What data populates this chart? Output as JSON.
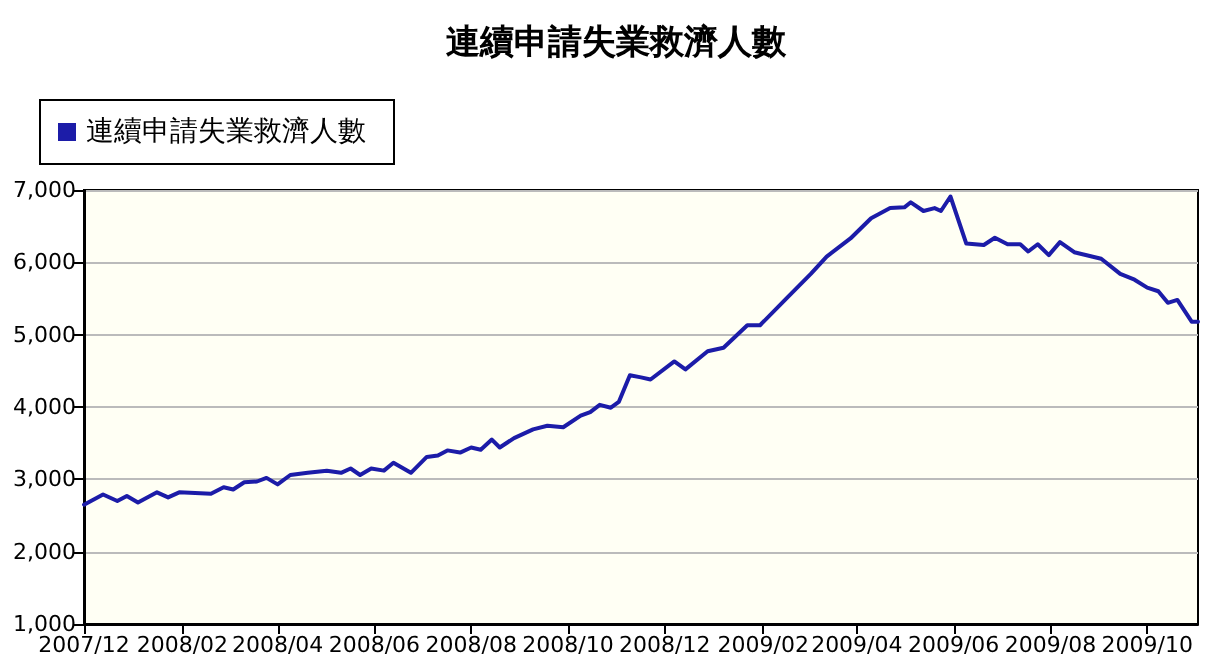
{
  "chart_data": {
    "type": "line",
    "title": "連續申請失業救濟人數",
    "x": [
      "2007-12-01",
      "2007-12-13",
      "2007-12-22",
      "2007-12-28",
      "2008-01-04",
      "2008-01-16",
      "2008-01-23",
      "2008-01-30",
      "2008-02-19",
      "2008-02-27",
      "2008-03-04",
      "2008-03-11",
      "2008-03-19",
      "2008-03-25",
      "2008-04-01",
      "2008-04-09",
      "2008-04-20",
      "2008-05-02",
      "2008-05-11",
      "2008-05-17",
      "2008-05-23",
      "2008-05-30",
      "2008-06-07",
      "2008-06-13",
      "2008-06-24",
      "2008-07-04",
      "2008-07-11",
      "2008-07-17",
      "2008-07-25",
      "2008-08-01",
      "2008-08-07",
      "2008-08-14",
      "2008-08-19",
      "2008-08-28",
      "2008-09-09",
      "2008-09-18",
      "2008-09-28",
      "2008-10-09",
      "2008-10-15",
      "2008-10-21",
      "2008-10-28",
      "2008-11-02",
      "2008-11-09",
      "2008-11-16",
      "2008-11-22",
      "2008-12-07",
      "2008-12-14",
      "2008-12-28",
      "2009-01-07",
      "2009-01-22",
      "2009-01-30",
      "2009-02-16",
      "2009-03-03",
      "2009-03-13",
      "2009-03-28",
      "2009-04-10",
      "2009-04-22",
      "2009-05-01",
      "2009-05-05",
      "2009-05-13",
      "2009-05-20",
      "2009-05-24",
      "2009-05-30",
      "2009-06-09",
      "2009-06-20",
      "2009-06-27",
      "2009-07-05",
      "2009-07-13",
      "2009-07-18",
      "2009-07-24",
      "2009-07-31",
      "2009-08-07",
      "2009-08-16",
      "2009-09-02",
      "2009-09-14",
      "2009-09-23",
      "2009-10-01",
      "2009-10-08",
      "2009-10-14",
      "2009-10-20",
      "2009-10-29",
      "2009-11-02"
    ],
    "series": [
      {
        "name": "連續申請失業救濟人數",
        "color": "#1c1ca8",
        "values": [
          2650,
          2790,
          2700,
          2770,
          2680,
          2820,
          2750,
          2820,
          2800,
          2890,
          2860,
          2960,
          2970,
          3020,
          2930,
          3060,
          3090,
          3120,
          3090,
          3150,
          3060,
          3150,
          3120,
          3230,
          3090,
          3310,
          3330,
          3400,
          3370,
          3440,
          3410,
          3550,
          3440,
          3570,
          3690,
          3740,
          3720,
          3880,
          3930,
          4030,
          3990,
          4070,
          4440,
          4410,
          4380,
          4630,
          4520,
          4770,
          4820,
          5130,
          5130,
          5510,
          5840,
          6080,
          6330,
          6610,
          6750,
          6760,
          6830,
          6710,
          6750,
          6710,
          6910,
          6260,
          6240,
          6340,
          6250,
          6250,
          6150,
          6250,
          6100,
          6280,
          6140,
          6050,
          5840,
          5760,
          5650,
          5600,
          5440,
          5480,
          5180,
          5180
        ]
      }
    ],
    "xlim": [
      "2007-12-01",
      "2009-11-02"
    ],
    "xticks": [
      {
        "value": "2007-12-01",
        "label": "2007/12"
      },
      {
        "value": "2008-02-01",
        "label": "2008/02"
      },
      {
        "value": "2008-04-01",
        "label": "2008/04"
      },
      {
        "value": "2008-06-01",
        "label": "2008/06"
      },
      {
        "value": "2008-08-01",
        "label": "2008/08"
      },
      {
        "value": "2008-10-01",
        "label": "2008/10"
      },
      {
        "value": "2008-12-01",
        "label": "2008/12"
      },
      {
        "value": "2009-02-01",
        "label": "2009/02"
      },
      {
        "value": "2009-04-01",
        "label": "2009/04"
      },
      {
        "value": "2009-06-01",
        "label": "2009/06"
      },
      {
        "value": "2009-08-01",
        "label": "2009/08"
      },
      {
        "value": "2009-10-01",
        "label": "2009/10"
      }
    ],
    "ylim": [
      1000,
      7000
    ],
    "yticks": [
      {
        "value": 1000,
        "label": "1,000"
      },
      {
        "value": 2000,
        "label": "2,000"
      },
      {
        "value": 3000,
        "label": "3,000"
      },
      {
        "value": 4000,
        "label": "4,000"
      },
      {
        "value": 5000,
        "label": "5,000"
      },
      {
        "value": 6000,
        "label": "6,000"
      },
      {
        "value": 7000,
        "label": "7,000"
      }
    ],
    "grid": "y",
    "legend": "top left",
    "marker": "none",
    "line_style": "solid"
  }
}
